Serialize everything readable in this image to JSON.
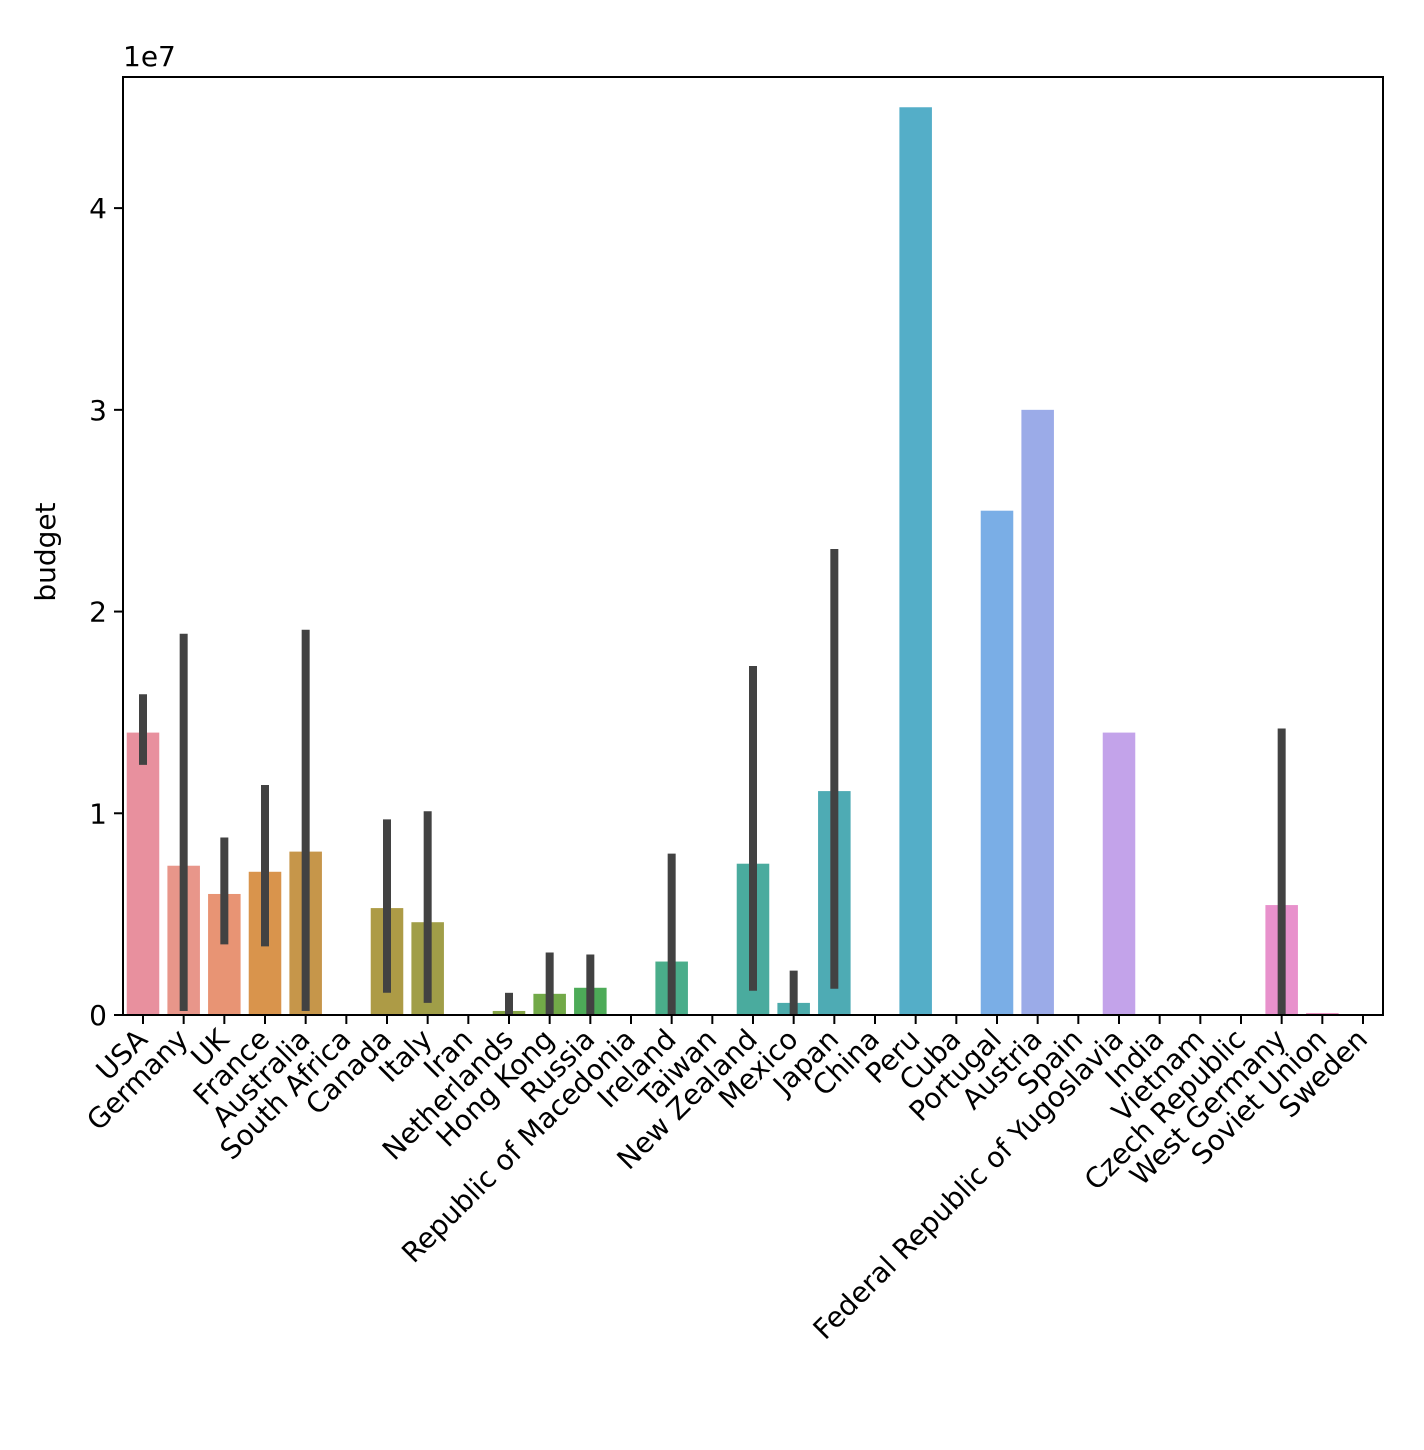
{
  "chart_data": {
    "type": "bar",
    "title": "",
    "xlabel": "",
    "ylabel": "budget",
    "y_offset_label": "1e7",
    "y_scale": 10000000,
    "ylim": [
      0,
      46500000
    ],
    "yticks": [
      0,
      1,
      2,
      3,
      4
    ],
    "grid": false,
    "legend": "none",
    "error_bars": true,
    "categories": [
      "USA",
      "Germany",
      "UK",
      "France",
      "Australia",
      "South Africa",
      "Canada",
      "Italy",
      "Iran",
      "Netherlands",
      "Hong Kong",
      "Russia",
      "Republic of Macedonia",
      "Ireland",
      "Taiwan",
      "New Zealand",
      "Mexico",
      "Japan",
      "China",
      "Peru",
      "Cuba",
      "Portugal",
      "Austria",
      "Spain",
      "Federal Republic of Yugoslavia",
      "India",
      "Vietnam",
      "Czech Republic",
      "West Germany",
      "Soviet Union",
      "Sweden"
    ],
    "values": [
      14000000,
      7400000,
      6000000,
      7100000,
      8100000,
      0,
      5300000,
      4600000,
      0,
      200000,
      1050000,
      1350000,
      0,
      2650000,
      0,
      7500000,
      600000,
      11100000,
      0,
      45000000,
      0,
      25000000,
      30000000,
      0,
      14000000,
      0,
      0,
      0,
      5450000,
      100000,
      0
    ],
    "ci_low": [
      12400000,
      200000,
      3500000,
      3400000,
      200000,
      null,
      1100000,
      600000,
      null,
      0,
      0,
      0,
      null,
      0,
      null,
      1200000,
      0,
      1300000,
      null,
      null,
      null,
      null,
      null,
      null,
      null,
      null,
      null,
      null,
      0,
      null,
      null
    ],
    "ci_high": [
      15900000,
      18900000,
      8800000,
      11400000,
      19100000,
      null,
      9700000,
      10100000,
      null,
      1100000,
      3100000,
      3000000,
      null,
      8000000,
      null,
      17300000,
      2200000,
      23100000,
      null,
      null,
      null,
      null,
      null,
      null,
      null,
      null,
      null,
      null,
      14200000,
      null,
      null
    ],
    "colors": [
      "#e8909e",
      "#e8968a",
      "#e89474",
      "#d9944c",
      "#c6964a",
      "#bb9a46",
      "#ad9b46",
      "#a09e48",
      "#92a148",
      "#85a446",
      "#72a948",
      "#4dab58",
      "#4caf76",
      "#4aad8a",
      "#4bab96",
      "#4aab9e",
      "#4cabab",
      "#4eabb4",
      "#50abbc",
      "#54aec8",
      "#60aee0",
      "#7aaee6",
      "#9babe8",
      "#aea6ea",
      "#c3a3ea",
      "#d4a0e6",
      "#e09ae0",
      "#e896d8",
      "#e891cc",
      "#e890c0",
      "#e88fb0"
    ]
  }
}
